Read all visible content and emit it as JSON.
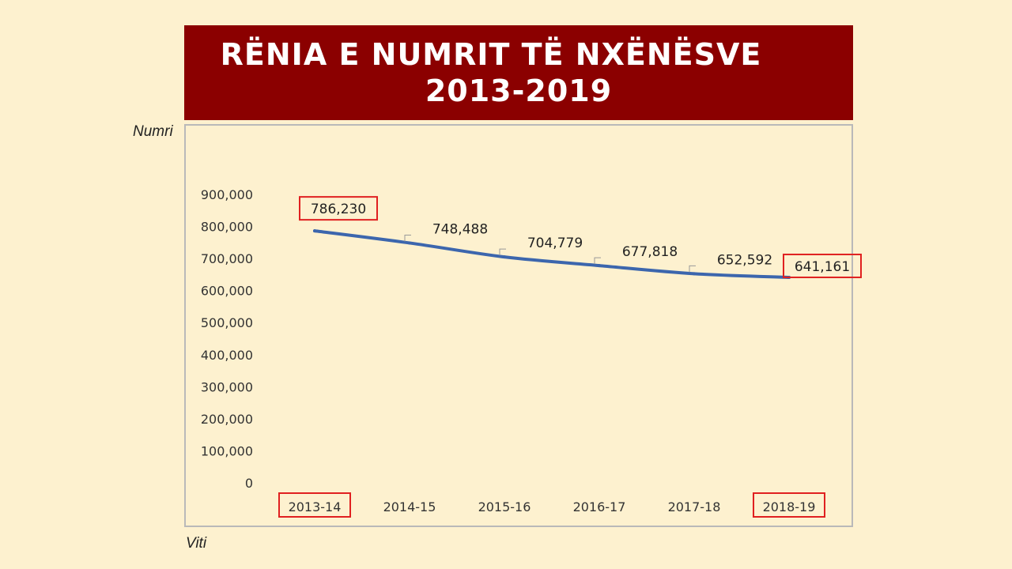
{
  "title": {
    "line1": "RËNIA E NUMRIT TË NXËNËSVE",
    "line2": "2013-2019"
  },
  "colors": {
    "banner": "#8b0000",
    "line": "#3c66ad",
    "highlight": "#e02020",
    "background": "#fdf1cf"
  },
  "chart_data": {
    "type": "line",
    "title": "RËNIA E NUMRIT TË NXËNËSVE 2013-2019",
    "ylabel": "Numri",
    "xlabel": "Viti",
    "categories": [
      "2013-14",
      "2014-15",
      "2015-16",
      "2016-17",
      "2017-18",
      "2018-19"
    ],
    "series": [
      {
        "values": [
          786230,
          748488,
          704779,
          677818,
          652592,
          641161
        ]
      }
    ],
    "data_labels": [
      "786,230",
      "748,488",
      "704,779",
      "677,818",
      "652,592",
      "641,161"
    ],
    "ylim": [
      0,
      900000
    ],
    "yticks": [
      0,
      100000,
      200000,
      300000,
      400000,
      500000,
      600000,
      700000,
      800000,
      900000
    ],
    "ytick_labels": [
      "0",
      "100,000",
      "200,000",
      "300,000",
      "400,000",
      "500,000",
      "600,000",
      "700,000",
      "800,000",
      "900,000"
    ],
    "highlighted_categories": [
      "2013-14",
      "2018-19"
    ],
    "highlighted_labels": [
      "786,230",
      "641,161"
    ],
    "grid": false,
    "legend": "none"
  }
}
